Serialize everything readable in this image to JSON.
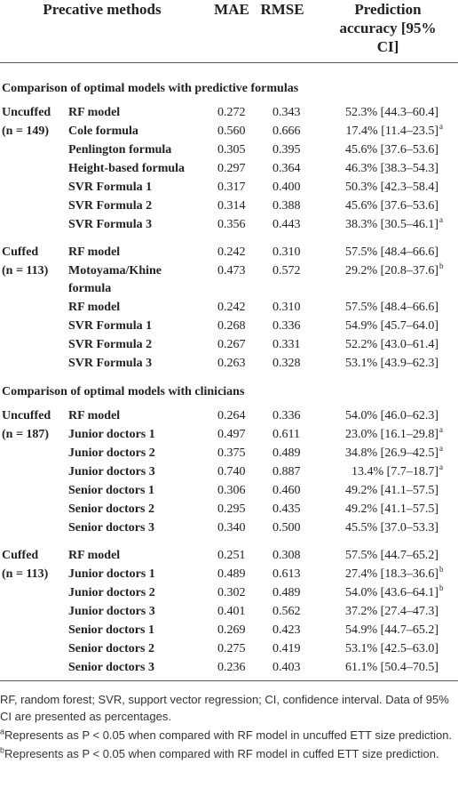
{
  "table": {
    "header": [
      "Precative methods",
      "MAE",
      "RMSE",
      "Prediction accuracy [95% CI]"
    ],
    "sections": [
      {
        "title": "Comparison of optimal models with predictive formulas",
        "groups": [
          {
            "label": "Uncuffed",
            "n": "(n = 149)",
            "rows": [
              {
                "method": "RF model",
                "mae": "0.272",
                "rmse": "0.343",
                "accuracy": "52.3% [44.3–60.4]"
              },
              {
                "method": "Cole formula",
                "mae": "0.560",
                "rmse": "0.666",
                "accuracy": "17.4% [11.4–23.5]",
                "note": "a"
              },
              {
                "method": "Penlington formula",
                "mae": "0.305",
                "rmse": "0.395",
                "accuracy": "45.6% [37.6–53.6]"
              },
              {
                "method": "Height-based formula",
                "mae": "0.297",
                "rmse": "0.364",
                "accuracy": "46.3% [38.3–54.3]"
              },
              {
                "method": "SVR Formula 1",
                "mae": "0.317",
                "rmse": "0.400",
                "accuracy": "50.3% [42.3–58.4]"
              },
              {
                "method": "SVR Formula 2",
                "mae": "0.314",
                "rmse": "0.388",
                "accuracy": "45.6% [37.6–53.6]"
              },
              {
                "method": "SVR Formula 3",
                "mae": "0.356",
                "rmse": "0.443",
                "accuracy": "38.3% [30.5–46.1]",
                "note": "a"
              }
            ]
          },
          {
            "label": "Cuffed",
            "n": "(n = 113)",
            "rows": [
              {
                "method": "RF model",
                "mae": "0.242",
                "rmse": "0.310",
                "accuracy": "57.5% [48.4–66.6]"
              },
              {
                "method": "Motoyama/Khine formula",
                "mae": "0.473",
                "rmse": "0.572",
                "accuracy": "29.2% [20.8–37.6]",
                "note": "b"
              },
              {
                "method": "RF model",
                "mae": "0.242",
                "rmse": "0.310",
                "accuracy": "57.5% [48.4–66.6]"
              },
              {
                "method": "SVR Formula 1",
                "mae": "0.268",
                "rmse": "0.336",
                "accuracy": "54.9% [45.7–64.0]"
              },
              {
                "method": "SVR Formula 2",
                "mae": "0.267",
                "rmse": "0.331",
                "accuracy": "52.2% [43.0–61.4]"
              },
              {
                "method": "SVR Formula 3",
                "mae": "0.263",
                "rmse": "0.328",
                "accuracy": "53.1% [43.9–62.3]"
              }
            ]
          }
        ]
      },
      {
        "title": "Comparison of optimal models with clinicians",
        "groups": [
          {
            "label": "Uncuffed",
            "n": "(n = 187)",
            "rows": [
              {
                "method": "RF model",
                "mae": "0.264",
                "rmse": "0.336",
                "accuracy": "54.0% [46.0–62.3]"
              },
              {
                "method": "Junior doctors 1",
                "mae": "0.497",
                "rmse": "0.611",
                "accuracy": "23.0% [16.1–29.8]",
                "note": "a"
              },
              {
                "method": "Junior doctors 2",
                "mae": "0.375",
                "rmse": "0.489",
                "accuracy": "34.8% [26.9–42.5]",
                "note": "a"
              },
              {
                "method": "Junior doctors 3",
                "mae": "0.740",
                "rmse": "0.887",
                "accuracy": "13.4% [7.7–18.7]",
                "note": "a"
              },
              {
                "method": "Senior doctors 1",
                "mae": "0.306",
                "rmse": "0.460",
                "accuracy": "49.2% [41.1–57.5]"
              },
              {
                "method": "Senior doctors 2",
                "mae": "0.295",
                "rmse": "0.435",
                "accuracy": "49.2% [41.1–57.5]"
              },
              {
                "method": "Senior doctors 3",
                "mae": "0.340",
                "rmse": "0.500",
                "accuracy": "45.5% [37.0–53.3]"
              }
            ]
          },
          {
            "label": "Cuffed",
            "n": "(n = 113)",
            "rows": [
              {
                "method": "RF model",
                "mae": "0.251",
                "rmse": "0.308",
                "accuracy": "57.5% [44.7–65.2]"
              },
              {
                "method": "Junior doctors 1",
                "mae": "0.489",
                "rmse": "0.613",
                "accuracy": "27.4% [18.3–36.6]",
                "note": "b"
              },
              {
                "method": "Junior doctors 2",
                "mae": "0.302",
                "rmse": "0.489",
                "accuracy": "54.0% [43.6–64.1]",
                "note": "b"
              },
              {
                "method": "Junior doctors 3",
                "mae": "0.401",
                "rmse": "0.562",
                "accuracy": "37.2% [27.4–47.3]"
              },
              {
                "method": "Senior doctors 1",
                "mae": "0.269",
                "rmse": "0.423",
                "accuracy": "54.9% [44.7–65.2]"
              },
              {
                "method": "Senior doctors 2",
                "mae": "0.275",
                "rmse": "0.419",
                "accuracy": "53.1% [42.5–63.0]"
              },
              {
                "method": "Senior doctors 3",
                "mae": "0.236",
                "rmse": "0.403",
                "accuracy": "61.1% [50.4–70.5]"
              }
            ]
          }
        ]
      }
    ],
    "footnotes": [
      {
        "text": "RF, random forest; SVR, support vector regression; CI, confidence interval. Data of 95% CI are presented as percentages."
      },
      {
        "mark": "a",
        "text": "Represents as P < 0.05 when compared with RF model in uncuffed ETT size prediction."
      },
      {
        "mark": "b",
        "text": "Represents as P < 0.05 when compared with RF model in cuffed ETT size prediction."
      }
    ]
  }
}
